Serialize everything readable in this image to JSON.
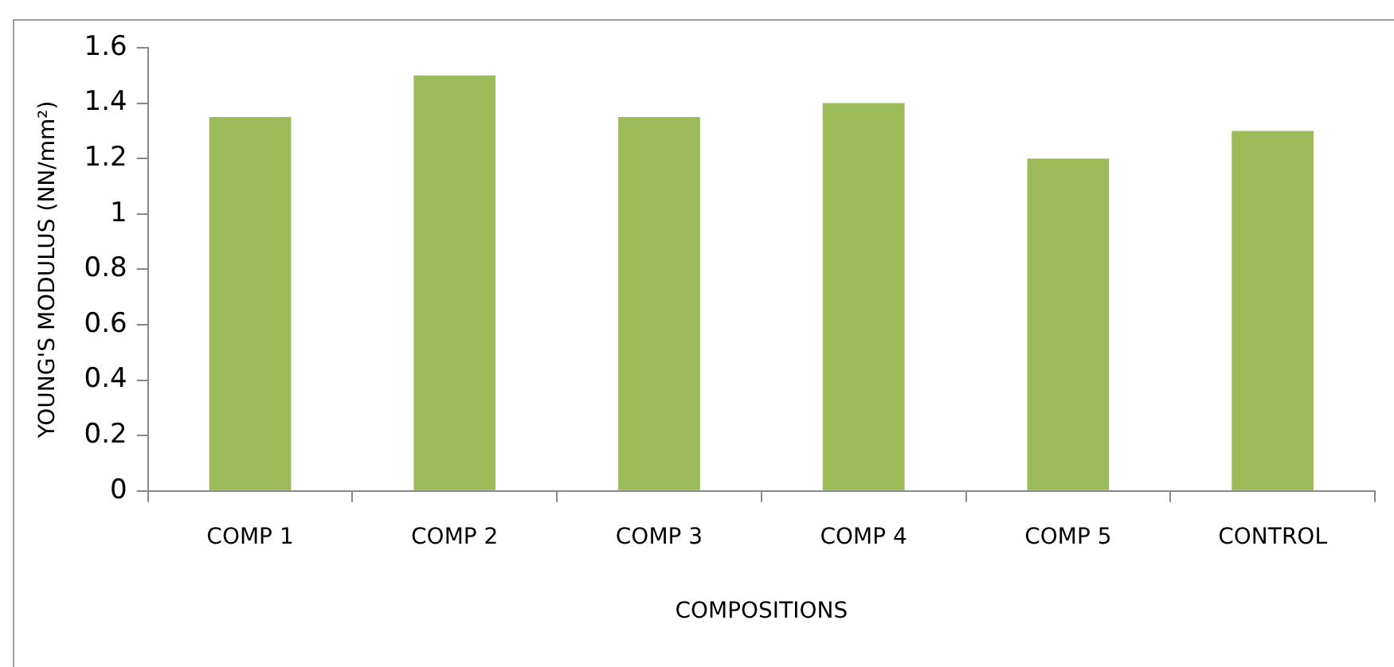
{
  "chart_data": {
    "type": "bar",
    "xlabel": "COMPOSITIONS",
    "ylabel": "YOUNG'S MODULUS (NN/mm²)",
    "categories": [
      "COMP 1",
      "COMP 2",
      "COMP 3",
      "COMP 4",
      "COMP 5",
      "CONTROL"
    ],
    "values": [
      1.35,
      1.5,
      1.35,
      1.4,
      1.2,
      1.3
    ],
    "color": "#9bbb59",
    "ylim": [
      0,
      1.6
    ],
    "yticks": [
      0,
      0.2,
      0.4,
      0.6,
      0.8,
      1,
      1.2,
      1.4,
      1.6
    ],
    "grid": false,
    "legend": false
  }
}
